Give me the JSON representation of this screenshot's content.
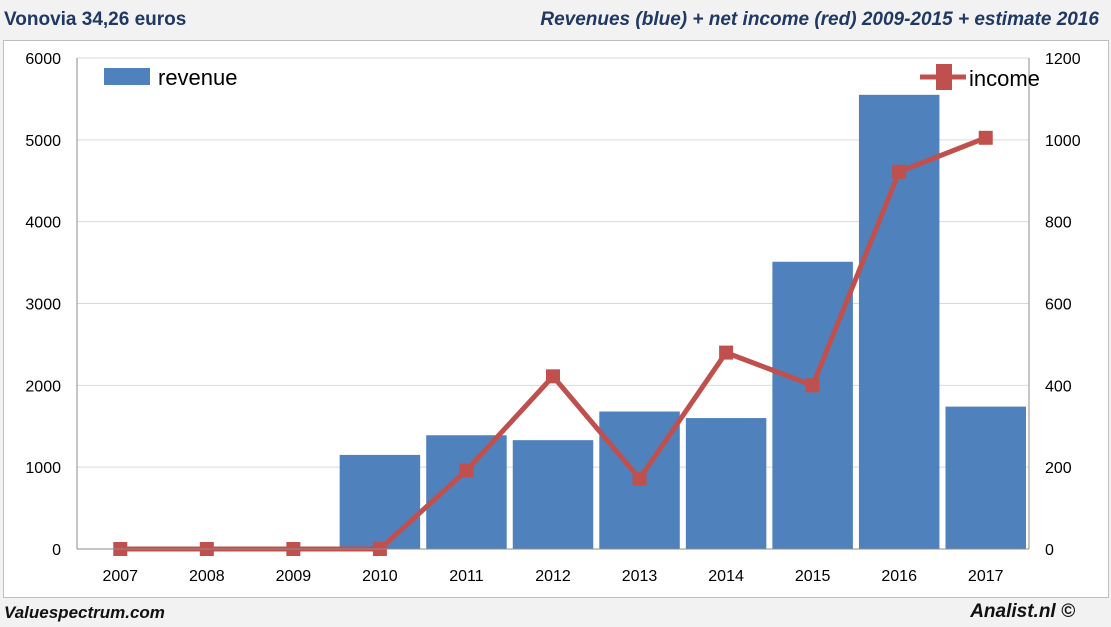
{
  "header": {
    "left_title": "Vonovia 34,26 euros",
    "right_title": "Revenues (blue) + net income (red) 2009-2015 + estimate 2016"
  },
  "footer": {
    "left": "Valuespectrum.com",
    "right": "Analist.nl ©"
  },
  "colors": {
    "bar": "#4f81bd",
    "line": "#c0504d",
    "grid": "#d9d9d9"
  },
  "chart_data": {
    "type": "bar",
    "categories": [
      "2007",
      "2008",
      "2009",
      "2010",
      "2011",
      "2012",
      "2013",
      "2014",
      "2015",
      "2016",
      "2017"
    ],
    "series": [
      {
        "name": "revenue",
        "kind": "bar",
        "axis": "left",
        "values": [
          0,
          0,
          0,
          1150,
          1390,
          1330,
          1680,
          1600,
          3510,
          5550,
          1740
        ]
      },
      {
        "name": "income",
        "kind": "line",
        "axis": "right",
        "values": [
          0,
          0,
          0,
          0,
          192,
          422,
          172,
          480,
          400,
          922,
          1005
        ]
      }
    ],
    "y_left": {
      "range": [
        0,
        6000
      ],
      "ticks": [
        "0",
        "1000",
        "2000",
        "3000",
        "4000",
        "5000",
        "6000"
      ]
    },
    "y_right": {
      "range": [
        0,
        1200
      ],
      "ticks": [
        "0",
        "200",
        "400",
        "600",
        "800",
        "1000",
        "1200"
      ]
    },
    "grid": true,
    "legend": [
      {
        "label": "revenue",
        "placement": "top-left"
      },
      {
        "label": "income",
        "placement": "top-right"
      }
    ]
  }
}
